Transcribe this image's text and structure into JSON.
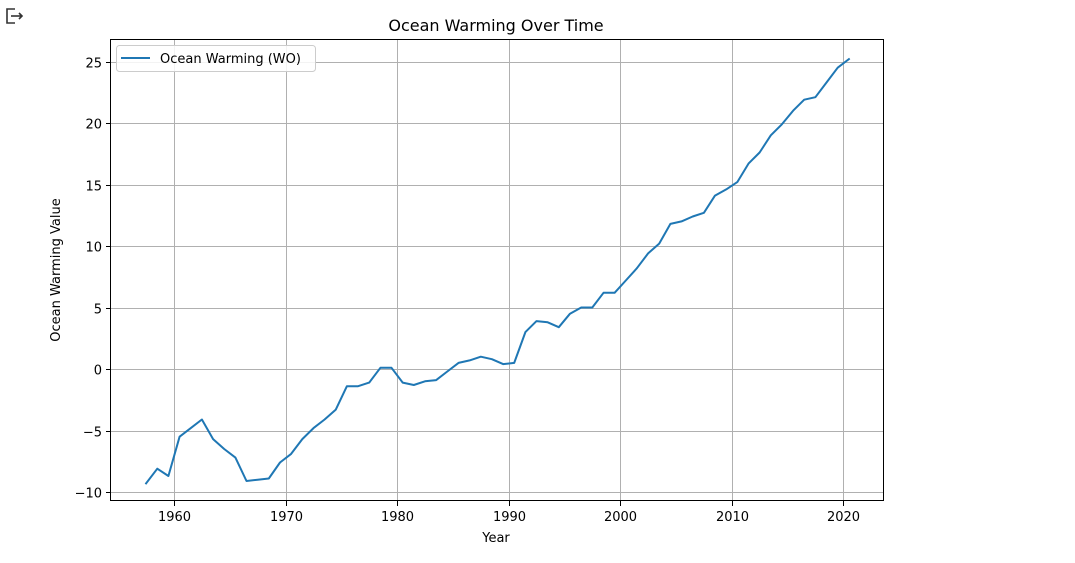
{
  "toolbar": {
    "exit_icon": "exit-icon"
  },
  "chart_data": {
    "type": "line",
    "title": "Ocean Warming Over Time",
    "xlabel": "Year",
    "ylabel": "Ocean Warming Value",
    "xlim": [
      1954.35,
      2023.65
    ],
    "ylim": [
      -10.73,
      26.75
    ],
    "xticks": [
      1960,
      1970,
      1980,
      1990,
      2000,
      2010,
      2020
    ],
    "yticks": [
      -10,
      -5,
      0,
      5,
      10,
      15,
      20,
      25
    ],
    "grid": true,
    "legend_position": "upper-left",
    "series": [
      {
        "name": "Ocean Warming (WO)",
        "color": "#1f77b4",
        "x": [
          1957.5,
          1958.5,
          1959.5,
          1960.5,
          1961.5,
          1962.5,
          1963.5,
          1964.5,
          1965.5,
          1966.5,
          1967.5,
          1968.5,
          1969.5,
          1970.5,
          1971.5,
          1972.5,
          1973.5,
          1974.5,
          1975.5,
          1976.5,
          1977.5,
          1978.5,
          1979.5,
          1980.5,
          1981.5,
          1982.5,
          1983.5,
          1984.5,
          1985.5,
          1986.5,
          1987.5,
          1988.5,
          1989.5,
          1990.5,
          1991.5,
          1992.5,
          1993.5,
          1994.5,
          1995.5,
          1996.5,
          1997.5,
          1998.5,
          1999.5,
          2000.5,
          2001.5,
          2002.5,
          2003.5,
          2004.5,
          2005.5,
          2006.5,
          2007.5,
          2008.5,
          2009.5,
          2010.5,
          2011.5,
          2012.5,
          2013.5,
          2014.5,
          2015.5,
          2016.5,
          2017.5,
          2018.5,
          2019.5,
          2020.5
        ],
        "y": [
          -9.3,
          -8.1,
          -8.7,
          -5.5,
          -4.8,
          -4.1,
          -5.7,
          -6.5,
          -7.2,
          -9.1,
          -9.0,
          -8.9,
          -7.6,
          -6.9,
          -5.7,
          -4.8,
          -4.1,
          -3.3,
          -1.4,
          -1.4,
          -1.1,
          0.1,
          0.1,
          -1.1,
          -1.3,
          -1.0,
          -0.9,
          -0.2,
          0.5,
          0.7,
          1.0,
          0.8,
          0.4,
          0.5,
          3.0,
          3.9,
          3.8,
          3.4,
          4.5,
          5.0,
          5.0,
          6.2,
          6.2,
          7.2,
          8.2,
          9.4,
          10.2,
          11.8,
          12.0,
          12.4,
          12.7,
          14.1,
          14.6,
          15.2,
          16.7,
          17.6,
          19.0,
          19.9,
          21.0,
          21.9,
          22.1,
          23.3,
          24.5,
          25.2
        ]
      }
    ]
  }
}
